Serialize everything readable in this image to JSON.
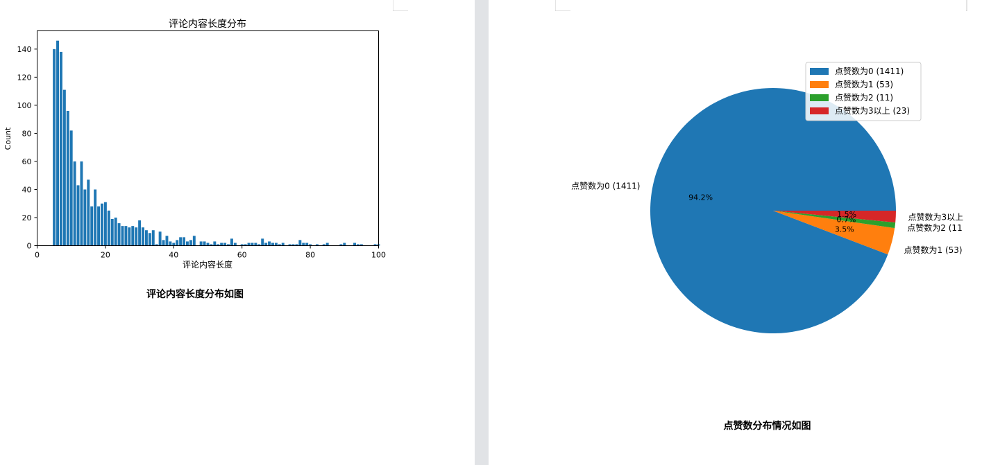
{
  "left_page": {
    "caption": "评论内容长度分布如图"
  },
  "right_page": {
    "caption": "点赞数分布情况如图"
  },
  "colors": {
    "bar": "#1f77b4",
    "pie": [
      "#1f77b4",
      "#ff7f0e",
      "#2ca02c",
      "#d62728"
    ],
    "page_bg": "#ffffff",
    "gutter": "#e1e3e6"
  },
  "chart_data": [
    {
      "type": "bar",
      "title": "评论内容长度分布",
      "xlabel": "评论内容长度",
      "ylabel": "Count",
      "xlim": [
        0,
        100
      ],
      "ylim": [
        0,
        153
      ],
      "xticks": [
        0,
        20,
        40,
        60,
        80,
        100
      ],
      "yticks": [
        0,
        20,
        40,
        60,
        80,
        100,
        120,
        140
      ],
      "grid": false,
      "x": [
        5,
        6,
        7,
        8,
        9,
        10,
        11,
        12,
        13,
        14,
        15,
        16,
        17,
        18,
        19,
        20,
        21,
        22,
        23,
        24,
        25,
        26,
        27,
        28,
        29,
        30,
        31,
        32,
        33,
        34,
        35,
        36,
        37,
        38,
        39,
        40,
        41,
        42,
        43,
        44,
        45,
        46,
        48,
        49,
        50,
        51,
        52,
        53,
        54,
        55,
        56,
        57,
        58,
        60,
        61,
        62,
        63,
        64,
        65,
        66,
        67,
        68,
        69,
        70,
        71,
        72,
        74,
        75,
        76,
        77,
        78,
        79,
        80,
        82,
        84,
        85,
        89,
        90,
        93,
        94,
        95,
        99,
        100
      ],
      "values": [
        140,
        146,
        138,
        111,
        96,
        82,
        60,
        43,
        60,
        40,
        47,
        28,
        40,
        28,
        30,
        31,
        25,
        19,
        20,
        16,
        14,
        14,
        13,
        14,
        13,
        18,
        13,
        11,
        9,
        11,
        1,
        10,
        4,
        7,
        3,
        2,
        4,
        6,
        6,
        3,
        4,
        7,
        3,
        3,
        2,
        1,
        3,
        1,
        2,
        2,
        1,
        5,
        2,
        1,
        1,
        2,
        2,
        2,
        1,
        5,
        2,
        3,
        2,
        2,
        1,
        2,
        1,
        1,
        1,
        4,
        2,
        2,
        1,
        1,
        1,
        2,
        1,
        2,
        2,
        1,
        1,
        1,
        1
      ]
    },
    {
      "type": "pie",
      "labels": [
        "点赞数为0 (1411)",
        "点赞数为1 (53)",
        "点赞数为2 (11",
        "点赞数为3以上"
      ],
      "values": [
        1411,
        53,
        11,
        23
      ],
      "percent_labels": [
        "94.2%",
        "3.5%",
        "0.7%",
        "1.5%"
      ],
      "legend": [
        "点赞数为0 (1411)",
        "点赞数为1 (53)",
        "点赞数为2 (11)",
        "点赞数为3以上 (23)"
      ],
      "legend_position": "top-right"
    }
  ]
}
